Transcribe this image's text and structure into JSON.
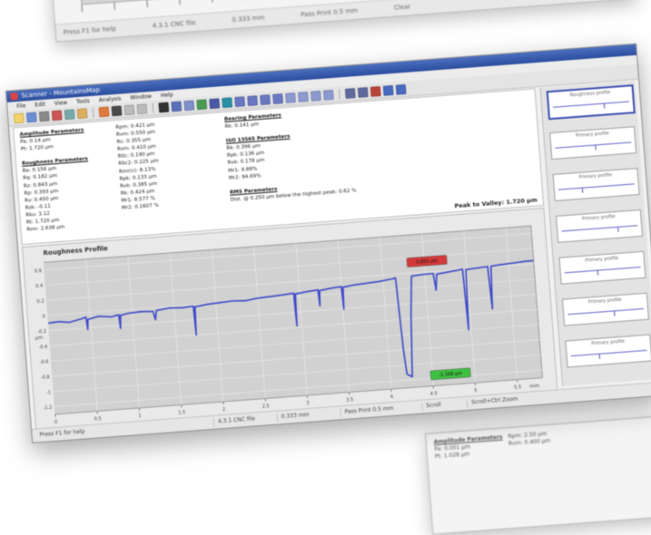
{
  "background_top": {
    "status_items": [
      "Press F1 for help",
      "4.3.1 CNC file",
      "0.333 mm",
      "Pass Print 0.5 mm",
      "Clear"
    ]
  },
  "window": {
    "title": "Scanner - MountainsMap",
    "menu": [
      "File",
      "Edit",
      "View",
      "Tools",
      "Analysis",
      "Window",
      "Help"
    ]
  },
  "params": {
    "col1": {
      "title1": "Amplitude Parameters",
      "lines1": [
        "Pa: 0.14 µm",
        "Pt: 1.720 µm"
      ],
      "title2": "Roughness Parameters",
      "lines2": [
        "Ra: 0.156 µm",
        "Rq: 0.182 µm",
        "Rz: 0.843 µm",
        "Rp: 0.393 µm",
        "Rv: 0.450 µm",
        "Rsk: -0.11",
        "Rku: 3.12",
        "Rt: 1.720 µm",
        "Rmr: 2.638 µm"
      ]
    },
    "col2": {
      "lines": [
        "Rpm: 0.421 µm",
        "Rvm: 0.550 µm",
        "Rc: 0.355 µm",
        "Rsm: 0.410 µm",
        "Rδc: 0.190 µm",
        "Rδc2: 0.225 µm",
        "Rmr(c): 8.13%",
        "Rpk: 0.133 µm",
        "Rvk: 0.385 µm",
        "Rk: 0.424 µm",
        "Mr1: 8.577 %",
        "Mr2: 0.1607 %"
      ]
    },
    "col3": {
      "title1": "Bearing Parameters",
      "lines1": [
        "Rk: 0.141 µm"
      ],
      "title2": "ISO 13565 Parameters",
      "lines2": [
        "Rk: 0.396 µm",
        "Rpk: 0.136 µm",
        "Rvk: 0.178 µm",
        "Mr1: 9.88%",
        "Mr2: 94.69%"
      ],
      "title3": "RMS Parameters",
      "lines3": [
        "Dist. @ 0.250 µm below the highest peak: 0.62 %"
      ]
    },
    "peak_valley_label": "Peak to Valley: 1.720 µm"
  },
  "chart_data": {
    "type": "line",
    "title": "Roughness Profile",
    "xlabel": "mm",
    "ylabel": "µm",
    "x_ticks": [
      "0",
      "0.5",
      "1",
      "1.5",
      "2",
      "2.5",
      "3",
      "3.5",
      "4",
      "4.5",
      "5",
      "5.5"
    ],
    "y_ticks": [
      "0.6",
      "0.4",
      "0.2",
      "0",
      "-0.2",
      "-0.4",
      "-0.6",
      "-0.8",
      "-1",
      "-1.2"
    ],
    "xlim": [
      0,
      5.8
    ],
    "ylim": [
      -1.3,
      0.7
    ],
    "series": [
      {
        "name": "",
        "color": "#3a46c8",
        "points": [
          [
            0.0,
            -0.1
          ],
          [
            0.12,
            -0.09
          ],
          [
            0.25,
            -0.11
          ],
          [
            0.38,
            -0.08
          ],
          [
            0.45,
            -0.06
          ],
          [
            0.46,
            -0.22
          ],
          [
            0.47,
            -0.09
          ],
          [
            0.6,
            -0.06
          ],
          [
            0.75,
            -0.08
          ],
          [
            0.84,
            -0.06
          ],
          [
            0.85,
            -0.24
          ],
          [
            0.86,
            -0.07
          ],
          [
            0.95,
            -0.05
          ],
          [
            1.1,
            -0.04
          ],
          [
            1.25,
            -0.05
          ],
          [
            1.27,
            -0.16
          ],
          [
            1.29,
            -0.04
          ],
          [
            1.45,
            -0.02
          ],
          [
            1.6,
            -0.03
          ],
          [
            1.73,
            -0.02
          ],
          [
            1.74,
            -0.4
          ],
          [
            1.75,
            -0.03
          ],
          [
            1.9,
            -0.01
          ],
          [
            2.05,
            0.0
          ],
          [
            2.2,
            0.01
          ],
          [
            2.35,
            0.0
          ],
          [
            2.5,
            0.02
          ],
          [
            2.65,
            0.03
          ],
          [
            2.8,
            0.04
          ],
          [
            2.93,
            0.05
          ],
          [
            2.94,
            -0.38
          ],
          [
            2.95,
            0.04
          ],
          [
            3.1,
            0.06
          ],
          [
            3.22,
            0.07
          ],
          [
            3.23,
            -0.14
          ],
          [
            3.24,
            0.06
          ],
          [
            3.38,
            0.08
          ],
          [
            3.5,
            0.09
          ],
          [
            3.51,
            -0.21
          ],
          [
            3.52,
            0.08
          ],
          [
            3.65,
            0.1
          ],
          [
            3.8,
            0.11
          ],
          [
            3.95,
            0.12
          ],
          [
            4.1,
            0.14
          ],
          [
            4.15,
            0.15
          ],
          [
            4.18,
            -0.8
          ],
          [
            4.2,
            -1.12
          ],
          [
            4.26,
            -1.16
          ],
          [
            4.3,
            -0.35
          ],
          [
            4.34,
            0.16
          ],
          [
            4.5,
            0.17
          ],
          [
            4.6,
            0.17
          ],
          [
            4.62,
            -0.05
          ],
          [
            4.64,
            0.16
          ],
          [
            4.8,
            0.18
          ],
          [
            4.9,
            0.19
          ],
          [
            4.95,
            0.2
          ],
          [
            4.97,
            -0.6
          ],
          [
            4.99,
            0.19
          ],
          [
            5.12,
            0.2
          ],
          [
            5.25,
            0.21
          ],
          [
            5.27,
            -0.35
          ],
          [
            5.29,
            0.21
          ],
          [
            5.4,
            0.22
          ],
          [
            5.55,
            0.23
          ],
          [
            5.7,
            0.24
          ],
          [
            5.8,
            0.24
          ]
        ]
      }
    ],
    "annotations": [
      {
        "text": "0.650 µm",
        "x": 4.32,
        "y": 0.34,
        "color": "#d43a3a"
      },
      {
        "text": "-1.168 µm",
        "x": 4.5,
        "y": -1.16,
        "color": "#3ec040"
      }
    ]
  },
  "thumbnails": [
    {
      "label": "Roughness profile",
      "selected": true
    },
    {
      "label": "Primary profile",
      "selected": false
    },
    {
      "label": "Primary profile",
      "selected": false
    },
    {
      "label": "Primary profile",
      "selected": false
    },
    {
      "label": "Primary profile",
      "selected": false
    },
    {
      "label": "Primary profile",
      "selected": false
    },
    {
      "label": "Primary profile",
      "selected": false
    }
  ],
  "statusbar": {
    "items": [
      "Press F1 for help",
      "4.3.1 CNC file",
      "0.333 mm",
      "Pass Print 0.5 mm",
      "Scroll",
      "Scroll+Ctrl Zoom"
    ]
  },
  "background_bottom": {
    "title": "Amplitude Parameters",
    "lines": [
      "Pa: 0.001 µm",
      "Pt: 1.028 µm",
      "Rpm: 2.50 µm",
      "Rvm: 0.400 µm"
    ]
  }
}
